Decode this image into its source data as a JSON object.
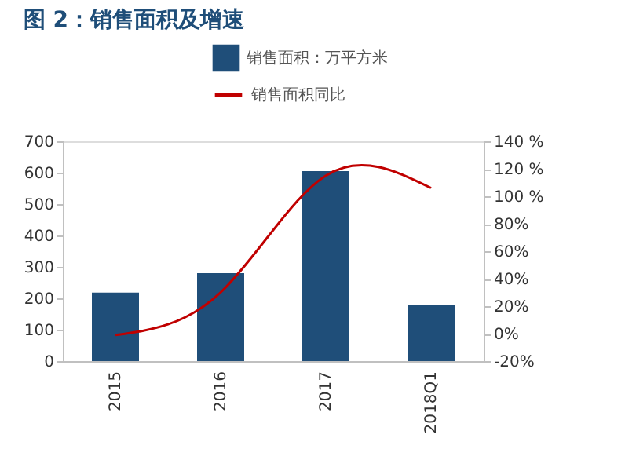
{
  "chart_data": {
    "type": "bar",
    "title": "图 2：销售面积及增速",
    "categories": [
      "2015",
      "2016",
      "2017",
      "2018Q1"
    ],
    "series": [
      {
        "name": "销售面积：万平方米",
        "color": "#1f4e79",
        "values": [
          218,
          280,
          605,
          178
        ]
      },
      {
        "name": "销售面积同比",
        "color": "#c00000",
        "type": "line",
        "axis": "y2",
        "values": [
          -1,
          30,
          115,
          106
        ]
      }
    ],
    "ylim": [
      0,
      700
    ],
    "yticks": [
      0,
      100,
      200,
      300,
      400,
      500,
      600,
      700
    ],
    "y2lim": [
      -20,
      140
    ],
    "y2ticks": [
      {
        "value": -20,
        "label": "-20%"
      },
      {
        "value": 0,
        "label": "0%"
      },
      {
        "value": 20,
        "label": "20%"
      },
      {
        "value": 40,
        "label": "40%"
      },
      {
        "value": 60,
        "label": "60%"
      },
      {
        "value": 80,
        "label": "80%"
      },
      {
        "value": 100,
        "label": "100 %"
      },
      {
        "value": 120,
        "label": "120 %"
      },
      {
        "value": 140,
        "label": "140 %"
      }
    ],
    "legend": "top",
    "grid": false,
    "marker": "none",
    "line_style": "solid"
  }
}
